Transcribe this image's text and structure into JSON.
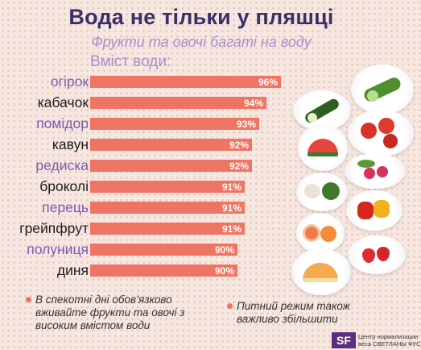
{
  "header": {
    "title": "Вода не тільки у пляшці",
    "subtitle": "Фрукти та овочі багаті на воду"
  },
  "chart_data": {
    "type": "bar",
    "orientation": "horizontal",
    "title": "Вміст води:",
    "categories": [
      "огірок",
      "кабачок",
      "помідор",
      "кавун",
      "редиска",
      "броколі",
      "перець",
      "грейпфрут",
      "полуниця",
      "диня"
    ],
    "values": [
      96,
      94,
      93,
      92,
      92,
      91,
      91,
      91,
      90,
      90
    ],
    "value_labels": [
      "96%",
      "94%",
      "93%",
      "92%",
      "92%",
      "91%",
      "91%",
      "91%",
      "90%",
      "90%"
    ],
    "unit": "%",
    "grid": false,
    "colors": {
      "bar": "#ee7563",
      "label_purple": "#7b5bb4",
      "label_black": "#1c1c1c"
    },
    "label_colors": [
      "purple",
      "black",
      "purple",
      "black",
      "purple",
      "black",
      "purple",
      "black",
      "purple",
      "black"
    ]
  },
  "notes": {
    "left": "В спекотні дні обов’язково вживайте фрукти та овочі з високим вмістом води",
    "right": "Питний режим також важливо збільшити"
  },
  "brand": {
    "logo": "SF",
    "caption": "Центр нормализации веса СВЕТЛАНЫ ФУС"
  },
  "icons": [
    "cucumber-icon",
    "zucchini-icon",
    "tomato-icon",
    "watermelon-icon",
    "radish-icon",
    "broccoli-icon",
    "pepper-icon",
    "grapefruit-icon",
    "strawberry-icon",
    "melon-icon"
  ]
}
